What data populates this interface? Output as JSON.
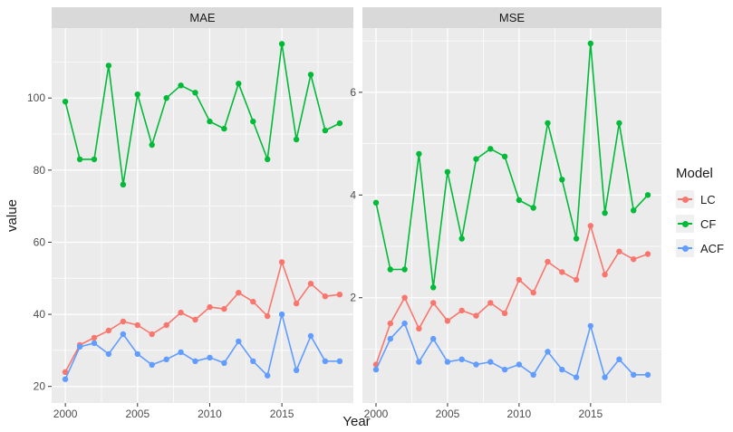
{
  "figure": {
    "x_axis_title": "Year",
    "y_axis_title": "value",
    "facet_labels": [
      "MAE",
      "MSE"
    ]
  },
  "legend": {
    "title": "Model",
    "entries": [
      {
        "label": "LC",
        "color": "#F8766D"
      },
      {
        "label": "CF",
        "color": "#00BA38"
      },
      {
        "label": "ACF",
        "color": "#619CFF"
      }
    ]
  },
  "colors": {
    "panel_bg": "#EBEBEB",
    "strip_bg": "#D9D9D9",
    "grid": "#FFFFFF",
    "axis_text": "#4D4D4D",
    "tick_mark": "#333333",
    "title_text": "#1A1A1A",
    "legend_key_bg": "#F0F0F0",
    "series_lc": "#F8766D",
    "series_cf": "#00BA38",
    "series_acf": "#619CFF"
  },
  "chart_data": {
    "type": "line",
    "title": "",
    "xlabel": "Year",
    "ylabel": "value",
    "legend_title": "Model",
    "legend_position": "right",
    "grid": true,
    "x": [
      2000,
      2001,
      2002,
      2003,
      2004,
      2005,
      2006,
      2007,
      2008,
      2009,
      2010,
      2011,
      2012,
      2013,
      2014,
      2015,
      2016,
      2017,
      2018,
      2019
    ],
    "x_ticks": [
      2000,
      2005,
      2010,
      2015
    ],
    "x_minor": [
      2002.5,
      2007.5,
      2012.5,
      2017.5
    ],
    "xlim": [
      1999.05,
      2019.95
    ],
    "facets": [
      {
        "label": "MAE",
        "ylim": [
          15.4,
          119.4
        ],
        "y_ticks": [
          20,
          40,
          60,
          80,
          100
        ],
        "y_minor": [
          30,
          50,
          70,
          90,
          110
        ],
        "series": [
          {
            "name": "LC",
            "color": "#F8766D",
            "values": [
              24,
              31.5,
              33.5,
              35.5,
              38,
              37,
              34.5,
              37,
              40.5,
              38.5,
              42,
              41.5,
              46,
              43.5,
              39.5,
              54.5,
              43,
              48.5,
              45,
              45.5
            ]
          },
          {
            "name": "CF",
            "color": "#00BA38",
            "values": [
              99,
              83,
              83,
              109,
              76,
              101,
              87,
              100,
              103.5,
              101.5,
              93.5,
              91.5,
              104,
              93.5,
              83,
              115,
              88.5,
              106.5,
              91,
              93
            ]
          },
          {
            "name": "ACF",
            "color": "#619CFF",
            "values": [
              22,
              31,
              32,
              29,
              34.5,
              29,
              26,
              27.5,
              29.5,
              27,
              28,
              26.5,
              32.5,
              27,
              23,
              40,
              24.5,
              34,
              27,
              27
            ]
          }
        ]
      },
      {
        "label": "MSE",
        "ylim": [
          -0.05,
          7.25
        ],
        "y_ticks": [
          2,
          4,
          6
        ],
        "y_minor": [
          1,
          3,
          5,
          7
        ],
        "series": [
          {
            "name": "LC",
            "color": "#F8766D",
            "values": [
              0.7,
              1.5,
              2.0,
              1.4,
              1.9,
              1.55,
              1.75,
              1.65,
              1.9,
              1.7,
              2.35,
              2.1,
              2.7,
              2.5,
              2.35,
              3.4,
              2.45,
              2.9,
              2.75,
              2.85
            ]
          },
          {
            "name": "CF",
            "color": "#00BA38",
            "values": [
              3.85,
              2.55,
              2.55,
              4.8,
              2.2,
              4.45,
              3.15,
              4.7,
              4.9,
              4.75,
              3.9,
              3.75,
              5.4,
              4.3,
              3.15,
              6.95,
              3.65,
              5.4,
              3.7,
              4.0
            ]
          },
          {
            "name": "ACF",
            "color": "#619CFF",
            "values": [
              0.6,
              1.2,
              1.5,
              0.75,
              1.2,
              0.75,
              0.8,
              0.7,
              0.75,
              0.6,
              0.7,
              0.5,
              0.95,
              0.6,
              0.45,
              1.45,
              0.45,
              0.8,
              0.5,
              0.5
            ]
          }
        ]
      }
    ]
  }
}
